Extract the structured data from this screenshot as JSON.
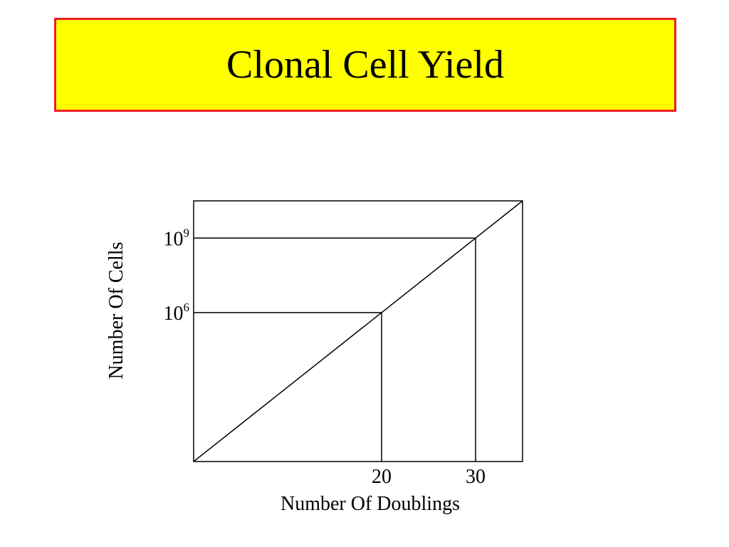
{
  "title": "Clonal Cell Yield",
  "colors": {
    "title_background": "#ffff00",
    "title_border": "#ee1c25",
    "lines": "#000000"
  },
  "chart_data": {
    "type": "line",
    "title": "Clonal Cell Yield",
    "xlabel": "Number Of Doublings",
    "ylabel": "Number Of Cells",
    "yscale": "log",
    "grid": false,
    "xlim": [
      0,
      35
    ],
    "ylim_exponent": [
      0,
      10.5
    ],
    "x_ticks": [
      {
        "value": 20,
        "label": "20"
      },
      {
        "value": 30,
        "label": "30"
      }
    ],
    "y_ticks": [
      {
        "exponent": 6,
        "base": "10",
        "sup": "6"
      },
      {
        "exponent": 9,
        "base": "10",
        "sup": "9"
      }
    ],
    "series": [
      {
        "x": [
          0,
          35
        ],
        "y_exponent": [
          0,
          10.5
        ]
      }
    ],
    "reference_lines": [
      {
        "x": 20,
        "y_exponent": 6
      },
      {
        "x": 30,
        "y_exponent": 9
      }
    ]
  }
}
